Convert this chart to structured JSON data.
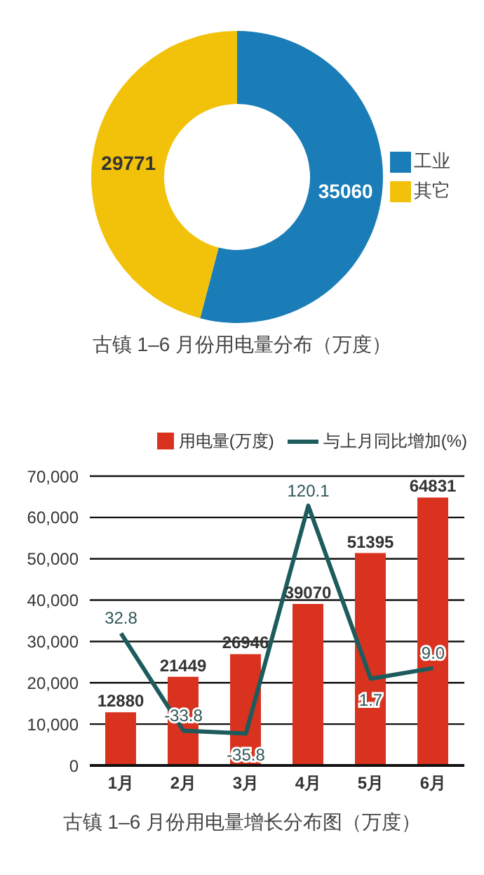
{
  "chart_data": [
    {
      "type": "donut",
      "title": "古镇 1–6 月份用电量分布（万度）",
      "categories": [
        "工业",
        "其它"
      ],
      "values": [
        35060,
        29771
      ],
      "colors": [
        "#1a7db8",
        "#f2c20a"
      ],
      "data_labels": true,
      "legend": "right"
    },
    {
      "type": "bar",
      "title": "古镇 1–6 月份用电量增长分布图（万度）",
      "categories": [
        "1月",
        "2月",
        "3月",
        "4月",
        "5月",
        "6月"
      ],
      "ylim": [
        0,
        70000
      ],
      "yticks": [
        {
          "value": 0,
          "label": "0"
        },
        {
          "value": 10000,
          "label": "10,000"
        },
        {
          "value": 20000,
          "label": "20,000"
        },
        {
          "value": 30000,
          "label": "30,000"
        },
        {
          "value": 40000,
          "label": "40,000"
        },
        {
          "value": 50000,
          "label": "50,000"
        },
        {
          "value": 60000,
          "label": "60,000"
        },
        {
          "value": 70000,
          "label": "70,000"
        }
      ],
      "grid": "y",
      "legend": "top right",
      "data_labels": true,
      "series": [
        {
          "name": "用电量(万度)",
          "type": "bar",
          "color": "#d9331f",
          "values": [
            12880,
            21449,
            26946,
            39070,
            51395,
            64831
          ]
        },
        {
          "name": "与上月同比增加(%)",
          "type": "line",
          "axis": "y2",
          "color": "#1d5b5c",
          "values": [
            32.8,
            -33.8,
            -35.8,
            120.1,
            1.7,
            9.0
          ],
          "value_labels": [
            "32.8",
            "-33.8",
            "-35.8",
            "120.1",
            "1.7",
            "9.0"
          ]
        }
      ]
    }
  ]
}
